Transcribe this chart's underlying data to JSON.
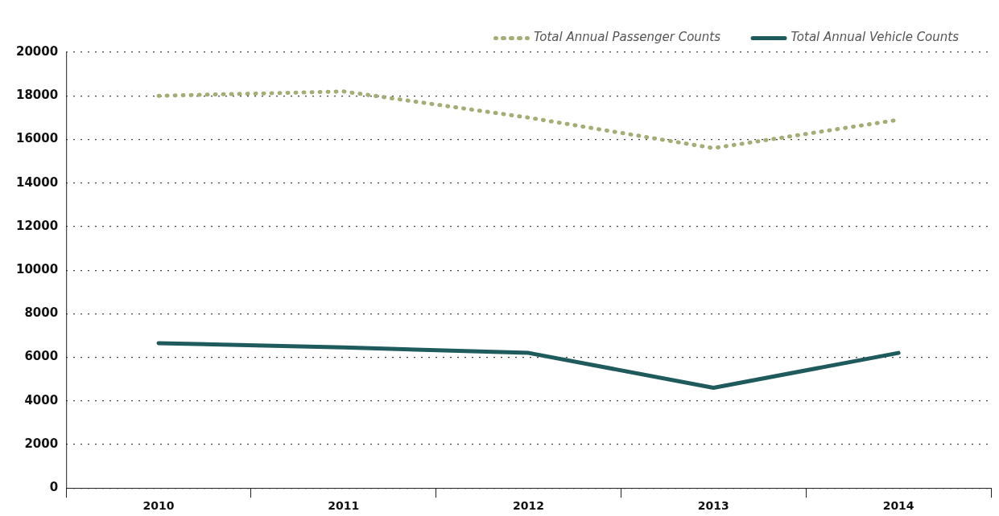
{
  "chart_data": {
    "type": "line",
    "categories": [
      "2010",
      "2011",
      "2012",
      "2013",
      "2014"
    ],
    "series": [
      {
        "name": "Total Annual Passenger Counts",
        "color": "#a3ad75",
        "values": [
          18000,
          18200,
          17000,
          15600,
          16900
        ],
        "line_style": "dotted"
      },
      {
        "name": "Total Annual Vehicle Counts",
        "color": "#1f5a5c",
        "values": [
          6650,
          6450,
          6200,
          4600,
          6200
        ],
        "line_style": "solid"
      }
    ],
    "ylim": [
      0,
      20000
    ],
    "yticks": [
      0,
      2000,
      4000,
      6000,
      8000,
      10000,
      12000,
      14000,
      16000,
      18000,
      20000
    ],
    "grid": "y",
    "legend": "top right",
    "marker": "none"
  }
}
